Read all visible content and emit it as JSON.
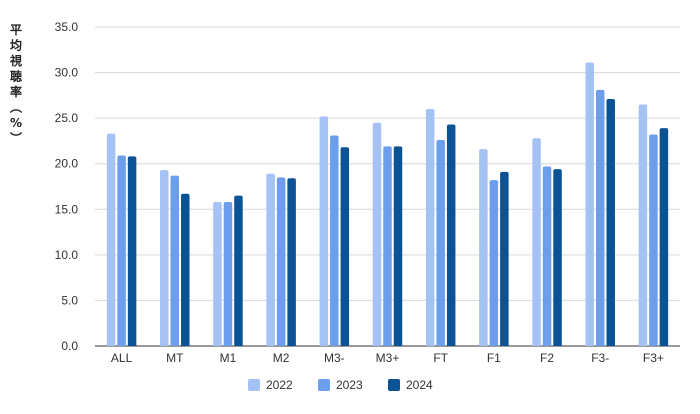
{
  "chart_data": {
    "type": "bar",
    "ylabel": "平均視聴率（%）",
    "ylim": [
      0,
      35
    ],
    "yticks": [
      "0.0",
      "5.0",
      "10.0",
      "15.0",
      "20.0",
      "25.0",
      "30.0",
      "35.0"
    ],
    "categories": [
      "ALL",
      "MT",
      "M1",
      "M2",
      "M3-",
      "M3+",
      "FT",
      "F1",
      "F2",
      "F3-",
      "F3+"
    ],
    "series": [
      {
        "name": "2022",
        "color": "#a4c2f4",
        "values": [
          23.3,
          19.3,
          15.8,
          18.9,
          25.2,
          24.5,
          26.0,
          21.6,
          22.8,
          31.1,
          26.5
        ]
      },
      {
        "name": "2023",
        "color": "#6d9eeb",
        "values": [
          20.9,
          18.7,
          15.8,
          18.5,
          23.1,
          21.9,
          22.6,
          18.2,
          19.7,
          28.1,
          23.2
        ]
      },
      {
        "name": "2024",
        "color": "#0b5394",
        "values": [
          20.8,
          16.7,
          16.5,
          18.4,
          21.8,
          21.9,
          24.3,
          19.1,
          19.4,
          27.1,
          23.9
        ]
      }
    ],
    "legend_position": "bottom",
    "grid": true
  }
}
